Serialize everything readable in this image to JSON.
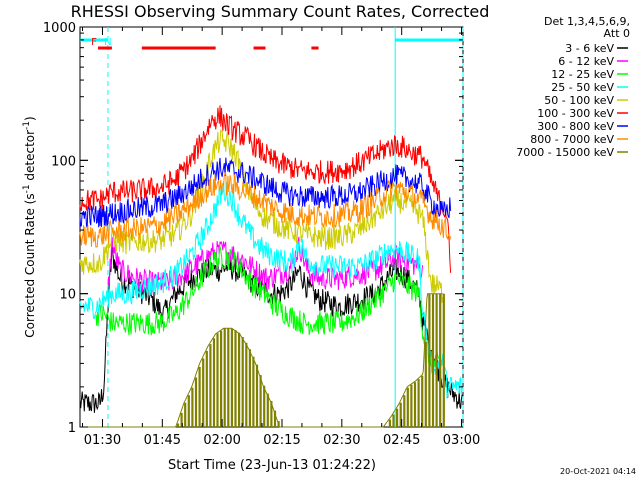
{
  "chart_data": {
    "type": "line",
    "title": "RHESSI Observing Summary Count Rates, Corrected",
    "xlabel": "Start Time (23-Jun-13 01:24:22)",
    "ylabel_main": "Corrected Count Rate (s",
    "ylabel_sup1": "-1",
    "ylabel_mid": " detector",
    "ylabel_sup2": "-1",
    "ylabel_end": ")",
    "yscale": "log",
    "xlim_minutes": [
      0,
      96
    ],
    "ylim": [
      1,
      1000
    ],
    "y_ticks": [
      "1",
      "10",
      "100",
      "1000"
    ],
    "x_ticks": [
      {
        "label": "01:30",
        "minute": 5.63
      },
      {
        "label": "01:45",
        "minute": 20.63
      },
      {
        "label": "02:00",
        "minute": 35.63
      },
      {
        "label": "02:15",
        "minute": 50.63
      },
      {
        "label": "02:30",
        "minute": 65.63
      },
      {
        "label": "02:45",
        "minute": 80.63
      },
      {
        "label": "03:00",
        "minute": 95.63
      }
    ],
    "legend_header_1": "Det 1,3,4,5,6,9,",
    "legend_header_2": "Att 0",
    "legend_placement": "right",
    "series": [
      {
        "name": "3 - 6 keV",
        "color": "#000000",
        "points": [
          [
            0,
            1.5
          ],
          [
            5,
            1.5
          ],
          [
            6,
            2
          ],
          [
            7,
            8
          ],
          [
            8,
            20
          ],
          [
            10,
            13
          ],
          [
            14,
            11
          ],
          [
            18,
            9
          ],
          [
            21,
            7
          ],
          [
            24,
            10
          ],
          [
            28,
            13
          ],
          [
            32,
            15
          ],
          [
            35,
            15
          ],
          [
            37,
            16
          ],
          [
            39,
            15
          ],
          [
            42,
            13
          ],
          [
            45,
            11
          ],
          [
            48,
            10
          ],
          [
            50,
            10
          ],
          [
            52,
            11
          ],
          [
            54,
            13
          ],
          [
            55,
            15
          ],
          [
            57,
            11
          ],
          [
            60,
            9
          ],
          [
            65,
            8
          ],
          [
            70,
            9
          ],
          [
            74,
            10
          ],
          [
            77,
            13
          ],
          [
            79,
            15
          ],
          [
            81,
            14
          ],
          [
            83,
            12
          ],
          [
            85,
            10
          ],
          [
            86,
            6
          ],
          [
            88,
            4
          ],
          [
            89,
            3
          ],
          [
            92,
            2
          ],
          [
            96,
            1.5
          ]
        ]
      },
      {
        "name": "6 - 12 keV",
        "color": "#ff00ff",
        "points": [
          [
            7,
            10
          ],
          [
            8,
            24
          ],
          [
            10,
            15
          ],
          [
            14,
            13
          ],
          [
            18,
            12
          ],
          [
            22,
            12
          ],
          [
            26,
            14
          ],
          [
            30,
            17
          ],
          [
            33,
            20
          ],
          [
            36,
            21
          ],
          [
            38,
            20
          ],
          [
            41,
            18
          ],
          [
            44,
            15
          ],
          [
            47,
            13
          ],
          [
            50,
            14
          ],
          [
            53,
            16
          ],
          [
            55,
            23
          ],
          [
            57,
            15
          ],
          [
            60,
            13
          ],
          [
            65,
            13
          ],
          [
            70,
            14
          ],
          [
            74,
            15
          ],
          [
            77,
            17
          ],
          [
            79,
            19
          ],
          [
            81,
            18
          ],
          [
            83,
            17
          ],
          [
            85,
            16
          ],
          [
            86,
            14
          ]
        ]
      },
      {
        "name": "12 - 25 keV",
        "color": "#00ff00",
        "points": [
          [
            4,
            7
          ],
          [
            6,
            7
          ],
          [
            8,
            6
          ],
          [
            12,
            6
          ],
          [
            16,
            6
          ],
          [
            20,
            6
          ],
          [
            24,
            7
          ],
          [
            28,
            10
          ],
          [
            31,
            14
          ],
          [
            34,
            18
          ],
          [
            36,
            19
          ],
          [
            38,
            18
          ],
          [
            40,
            16
          ],
          [
            43,
            12
          ],
          [
            46,
            10
          ],
          [
            49,
            8
          ],
          [
            52,
            7
          ],
          [
            56,
            6
          ],
          [
            60,
            6
          ],
          [
            65,
            6
          ],
          [
            70,
            7
          ],
          [
            74,
            9
          ],
          [
            77,
            11
          ],
          [
            79,
            13
          ],
          [
            81,
            12
          ],
          [
            83,
            11
          ],
          [
            85,
            10
          ],
          [
            86,
            5
          ],
          [
            88,
            3
          ],
          [
            90,
            3
          ]
        ]
      },
      {
        "name": "25 - 50 keV",
        "color": "#00ffff",
        "points": [
          [
            0,
            8
          ],
          [
            4,
            8
          ],
          [
            6,
            9
          ],
          [
            8,
            10
          ],
          [
            12,
            10
          ],
          [
            16,
            11
          ],
          [
            20,
            12
          ],
          [
            24,
            14
          ],
          [
            28,
            20
          ],
          [
            32,
            32
          ],
          [
            35,
            52
          ],
          [
            36,
            60
          ],
          [
            38,
            52
          ],
          [
            40,
            38
          ],
          [
            43,
            27
          ],
          [
            46,
            21
          ],
          [
            50,
            18
          ],
          [
            53,
            17
          ],
          [
            55,
            25
          ],
          [
            57,
            18
          ],
          [
            60,
            16
          ],
          [
            65,
            16
          ],
          [
            70,
            16
          ],
          [
            74,
            18
          ],
          [
            77,
            21
          ],
          [
            79,
            22
          ],
          [
            81,
            21
          ],
          [
            83,
            19
          ],
          [
            85,
            18
          ],
          [
            86,
            7
          ],
          [
            88,
            3
          ],
          [
            91,
            3
          ],
          [
            92,
            2
          ],
          [
            96,
            2
          ]
        ]
      },
      {
        "name": "50 - 100 keV",
        "color": "#cccc00",
        "points": [
          [
            0,
            17
          ],
          [
            5,
            17
          ],
          [
            8,
            25
          ],
          [
            12,
            24
          ],
          [
            16,
            25
          ],
          [
            20,
            25
          ],
          [
            24,
            28
          ],
          [
            28,
            40
          ],
          [
            31,
            70
          ],
          [
            33,
            110
          ],
          [
            35,
            140
          ],
          [
            37,
            135
          ],
          [
            39,
            110
          ],
          [
            41,
            75
          ],
          [
            43,
            50
          ],
          [
            46,
            38
          ],
          [
            50,
            32
          ],
          [
            54,
            29
          ],
          [
            58,
            27
          ],
          [
            62,
            26
          ],
          [
            66,
            27
          ],
          [
            70,
            30
          ],
          [
            74,
            38
          ],
          [
            77,
            45
          ],
          [
            79,
            50
          ],
          [
            81,
            48
          ],
          [
            83,
            45
          ],
          [
            85,
            40
          ],
          [
            86,
            35
          ],
          [
            88,
            12
          ],
          [
            90,
            11
          ],
          [
            91,
            10
          ]
        ]
      },
      {
        "name": "100 - 300 keV",
        "color": "#ff0000",
        "points": [
          [
            0,
            50
          ],
          [
            5,
            50
          ],
          [
            8,
            58
          ],
          [
            12,
            58
          ],
          [
            16,
            60
          ],
          [
            20,
            62
          ],
          [
            24,
            72
          ],
          [
            28,
            100
          ],
          [
            31,
            150
          ],
          [
            33,
            200
          ],
          [
            35,
            215
          ],
          [
            37,
            185
          ],
          [
            39,
            165
          ],
          [
            42,
            145
          ],
          [
            45,
            120
          ],
          [
            48,
            100
          ],
          [
            52,
            90
          ],
          [
            55,
            84
          ],
          [
            58,
            82
          ],
          [
            62,
            82
          ],
          [
            66,
            85
          ],
          [
            70,
            95
          ],
          [
            74,
            110
          ],
          [
            77,
            125
          ],
          [
            79,
            130
          ],
          [
            81,
            125
          ],
          [
            83,
            115
          ],
          [
            85,
            108
          ],
          [
            86,
            105
          ],
          [
            88,
            70
          ],
          [
            90,
            50
          ],
          [
            92,
            40
          ],
          [
            93,
            12
          ]
        ]
      },
      {
        "name": "300 - 800 keV",
        "color": "#0000ff",
        "points": [
          [
            0,
            38
          ],
          [
            5,
            38
          ],
          [
            8,
            40
          ],
          [
            12,
            42
          ],
          [
            16,
            44
          ],
          [
            20,
            46
          ],
          [
            24,
            52
          ],
          [
            28,
            63
          ],
          [
            31,
            75
          ],
          [
            34,
            85
          ],
          [
            36,
            87
          ],
          [
            38,
            85
          ],
          [
            41,
            80
          ],
          [
            44,
            72
          ],
          [
            47,
            65
          ],
          [
            50,
            58
          ],
          [
            54,
            54
          ],
          [
            58,
            53
          ],
          [
            62,
            53
          ],
          [
            66,
            54
          ],
          [
            70,
            57
          ],
          [
            74,
            65
          ],
          [
            77,
            72
          ],
          [
            79,
            76
          ],
          [
            81,
            74
          ],
          [
            83,
            70
          ],
          [
            85,
            66
          ],
          [
            86,
            63
          ],
          [
            88,
            48
          ],
          [
            91,
            40
          ],
          [
            93,
            45
          ]
        ]
      },
      {
        "name": "800 - 7000 keV",
        "color": "#ff8c00",
        "points": [
          [
            0,
            27
          ],
          [
            5,
            27
          ],
          [
            8,
            29
          ],
          [
            12,
            30
          ],
          [
            16,
            31
          ],
          [
            20,
            33
          ],
          [
            24,
            38
          ],
          [
            28,
            47
          ],
          [
            31,
            57
          ],
          [
            34,
            65
          ],
          [
            36,
            67
          ],
          [
            38,
            65
          ],
          [
            41,
            60
          ],
          [
            44,
            53
          ],
          [
            47,
            47
          ],
          [
            50,
            42
          ],
          [
            54,
            39
          ],
          [
            58,
            38
          ],
          [
            62,
            38
          ],
          [
            66,
            39
          ],
          [
            70,
            42
          ],
          [
            74,
            50
          ],
          [
            77,
            58
          ],
          [
            79,
            62
          ],
          [
            81,
            60
          ],
          [
            83,
            55
          ],
          [
            85,
            51
          ],
          [
            86,
            48
          ],
          [
            88,
            38
          ],
          [
            91,
            32
          ],
          [
            93,
            27
          ]
        ]
      },
      {
        "name": "7000 - 15000 keV",
        "color": "#808000",
        "points": [
          [
            0,
            1
          ],
          [
            24,
            1
          ],
          [
            26,
            1.5
          ],
          [
            28,
            2
          ],
          [
            30,
            3
          ],
          [
            32,
            4
          ],
          [
            34,
            5
          ],
          [
            36,
            5.5
          ],
          [
            38,
            5.5
          ],
          [
            40,
            5
          ],
          [
            42,
            4
          ],
          [
            44,
            3
          ],
          [
            46,
            2
          ],
          [
            48,
            1.5
          ],
          [
            50,
            1
          ],
          [
            76,
            1
          ],
          [
            78,
            1.2
          ],
          [
            80,
            1.5
          ],
          [
            82,
            2
          ],
          [
            84,
            2.2
          ],
          [
            86,
            2.5
          ],
          [
            87,
            10
          ],
          [
            89,
            10
          ],
          [
            90,
            10
          ],
          [
            91,
            10
          ]
        ]
      }
    ],
    "annotations": [
      {
        "text": "F",
        "color": "#ff0000",
        "minute": 3.5,
        "kind": "flag-letter"
      },
      {
        "text": "N",
        "color": "#00ffff",
        "minute": 7.0,
        "kind": "flag-letter"
      }
    ],
    "flags": [
      {
        "name": "flare",
        "color": "#ff0000",
        "ranges": [
          [
            4.5,
            8.0
          ],
          [
            15.5,
            34.0
          ],
          [
            43.5,
            46.5
          ],
          [
            58.0,
            59.8
          ]
        ]
      },
      {
        "name": "night",
        "color": "#00ffff",
        "ranges": [
          [
            0,
            7.0
          ],
          [
            79.0,
            96.0
          ]
        ]
      }
    ],
    "vertical_markers": [
      {
        "minute": 7.0,
        "color": "#00ffff",
        "style": "dashed"
      },
      {
        "minute": 79.0,
        "color": "#00ffff",
        "style": "solid"
      },
      {
        "minute": 96.0,
        "color": "#00ffff",
        "style": "dashed"
      }
    ],
    "footer_timestamp": "20-Oct-2021 04:14"
  }
}
